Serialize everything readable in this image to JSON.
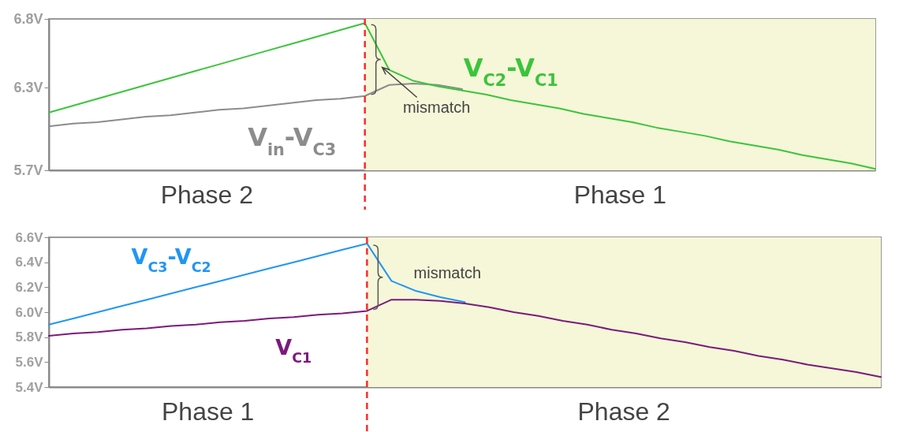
{
  "chart_data": [
    {
      "type": "line",
      "categories": [
        null,
        null,
        null,
        null,
        null,
        null,
        null,
        null,
        null,
        null,
        null,
        null,
        null,
        null,
        null,
        null,
        null,
        null,
        null,
        null,
        null,
        null,
        null,
        null,
        null,
        null,
        null,
        null,
        null,
        null,
        null,
        null,
        null,
        null,
        null
      ],
      "ylim": [
        5.7,
        6.8
      ],
      "yticks": [
        {
          "value": 5.7,
          "label": "5.7V"
        },
        {
          "value": 6.3,
          "label": "6.3V"
        },
        {
          "value": 6.8,
          "label": "6.8V"
        }
      ],
      "tick_labels": "y",
      "series": [
        {
          "name": "V$_{in}$-V$_{C3}$",
          "color": "#8c8c8c",
          "values": [
            6.02,
            6.04,
            6.05,
            6.07,
            6.09,
            6.1,
            6.12,
            6.14,
            6.15,
            6.17,
            6.19,
            6.21,
            6.22,
            6.24,
            6.32,
            6.33,
            6.32,
            6.29,
            null,
            null,
            null,
            null,
            null,
            null,
            null,
            null,
            null,
            null,
            null,
            null,
            null,
            null,
            null,
            null,
            null
          ]
        },
        {
          "name": "V$_{C2}$-V$_{C1}$",
          "color": "#3cc43c",
          "values": [
            6.12,
            6.17,
            6.22,
            6.27,
            6.32,
            6.37,
            6.42,
            6.47,
            6.52,
            6.57,
            6.62,
            6.67,
            6.72,
            6.77,
            6.43,
            6.35,
            6.31,
            6.28,
            6.25,
            6.21,
            6.18,
            6.15,
            6.11,
            6.08,
            6.05,
            6.01,
            5.98,
            5.95,
            5.91,
            5.88,
            5.85,
            5.81,
            5.78,
            5.75,
            5.71
          ]
        }
      ],
      "annotations": [
        "mismatch",
        "Phase 2",
        "Phase 1"
      ]
    },
    {
      "type": "line",
      "categories": [
        null,
        null,
        null,
        null,
        null,
        null,
        null,
        null,
        null,
        null,
        null,
        null,
        null,
        null,
        null,
        null,
        null,
        null,
        null,
        null,
        null,
        null,
        null,
        null,
        null,
        null,
        null,
        null,
        null,
        null,
        null,
        null,
        null,
        null,
        null
      ],
      "ylim": [
        5.4,
        6.6
      ],
      "yticks": [
        {
          "value": 5.4,
          "label": "5.4V"
        },
        {
          "value": 5.6,
          "label": "5.6V"
        },
        {
          "value": 5.8,
          "label": "5.8V"
        },
        {
          "value": 6.0,
          "label": "6.0V"
        },
        {
          "value": 6.2,
          "label": "6.2V"
        },
        {
          "value": 6.4,
          "label": "6.4V"
        },
        {
          "value": 6.6,
          "label": "6.6V"
        }
      ],
      "tick_labels": "y",
      "series": [
        {
          "name": "V$_{C3}$-V$_{C2}$",
          "color": "#2196f3",
          "values": [
            5.9,
            5.95,
            6.0,
            6.05,
            6.1,
            6.15,
            6.2,
            6.25,
            6.3,
            6.35,
            6.4,
            6.45,
            6.5,
            6.55,
            6.25,
            6.17,
            6.12,
            6.08,
            null,
            null,
            null,
            null,
            null,
            null,
            null,
            null,
            null,
            null,
            null,
            null,
            null,
            null,
            null,
            null,
            null
          ]
        },
        {
          "name": "V$_{C1}$",
          "color": "#7b1a7b",
          "values": [
            5.81,
            5.83,
            5.84,
            5.86,
            5.87,
            5.89,
            5.9,
            5.92,
            5.93,
            5.95,
            5.96,
            5.98,
            5.99,
            6.01,
            6.1,
            6.1,
            6.09,
            6.07,
            6.04,
            6.0,
            5.97,
            5.93,
            5.9,
            5.86,
            5.83,
            5.79,
            5.76,
            5.72,
            5.69,
            5.65,
            5.62,
            5.58,
            5.55,
            5.52,
            5.48
          ]
        }
      ],
      "annotations": [
        "mismatch",
        "Phase 1",
        "Phase 2"
      ]
    }
  ]
}
